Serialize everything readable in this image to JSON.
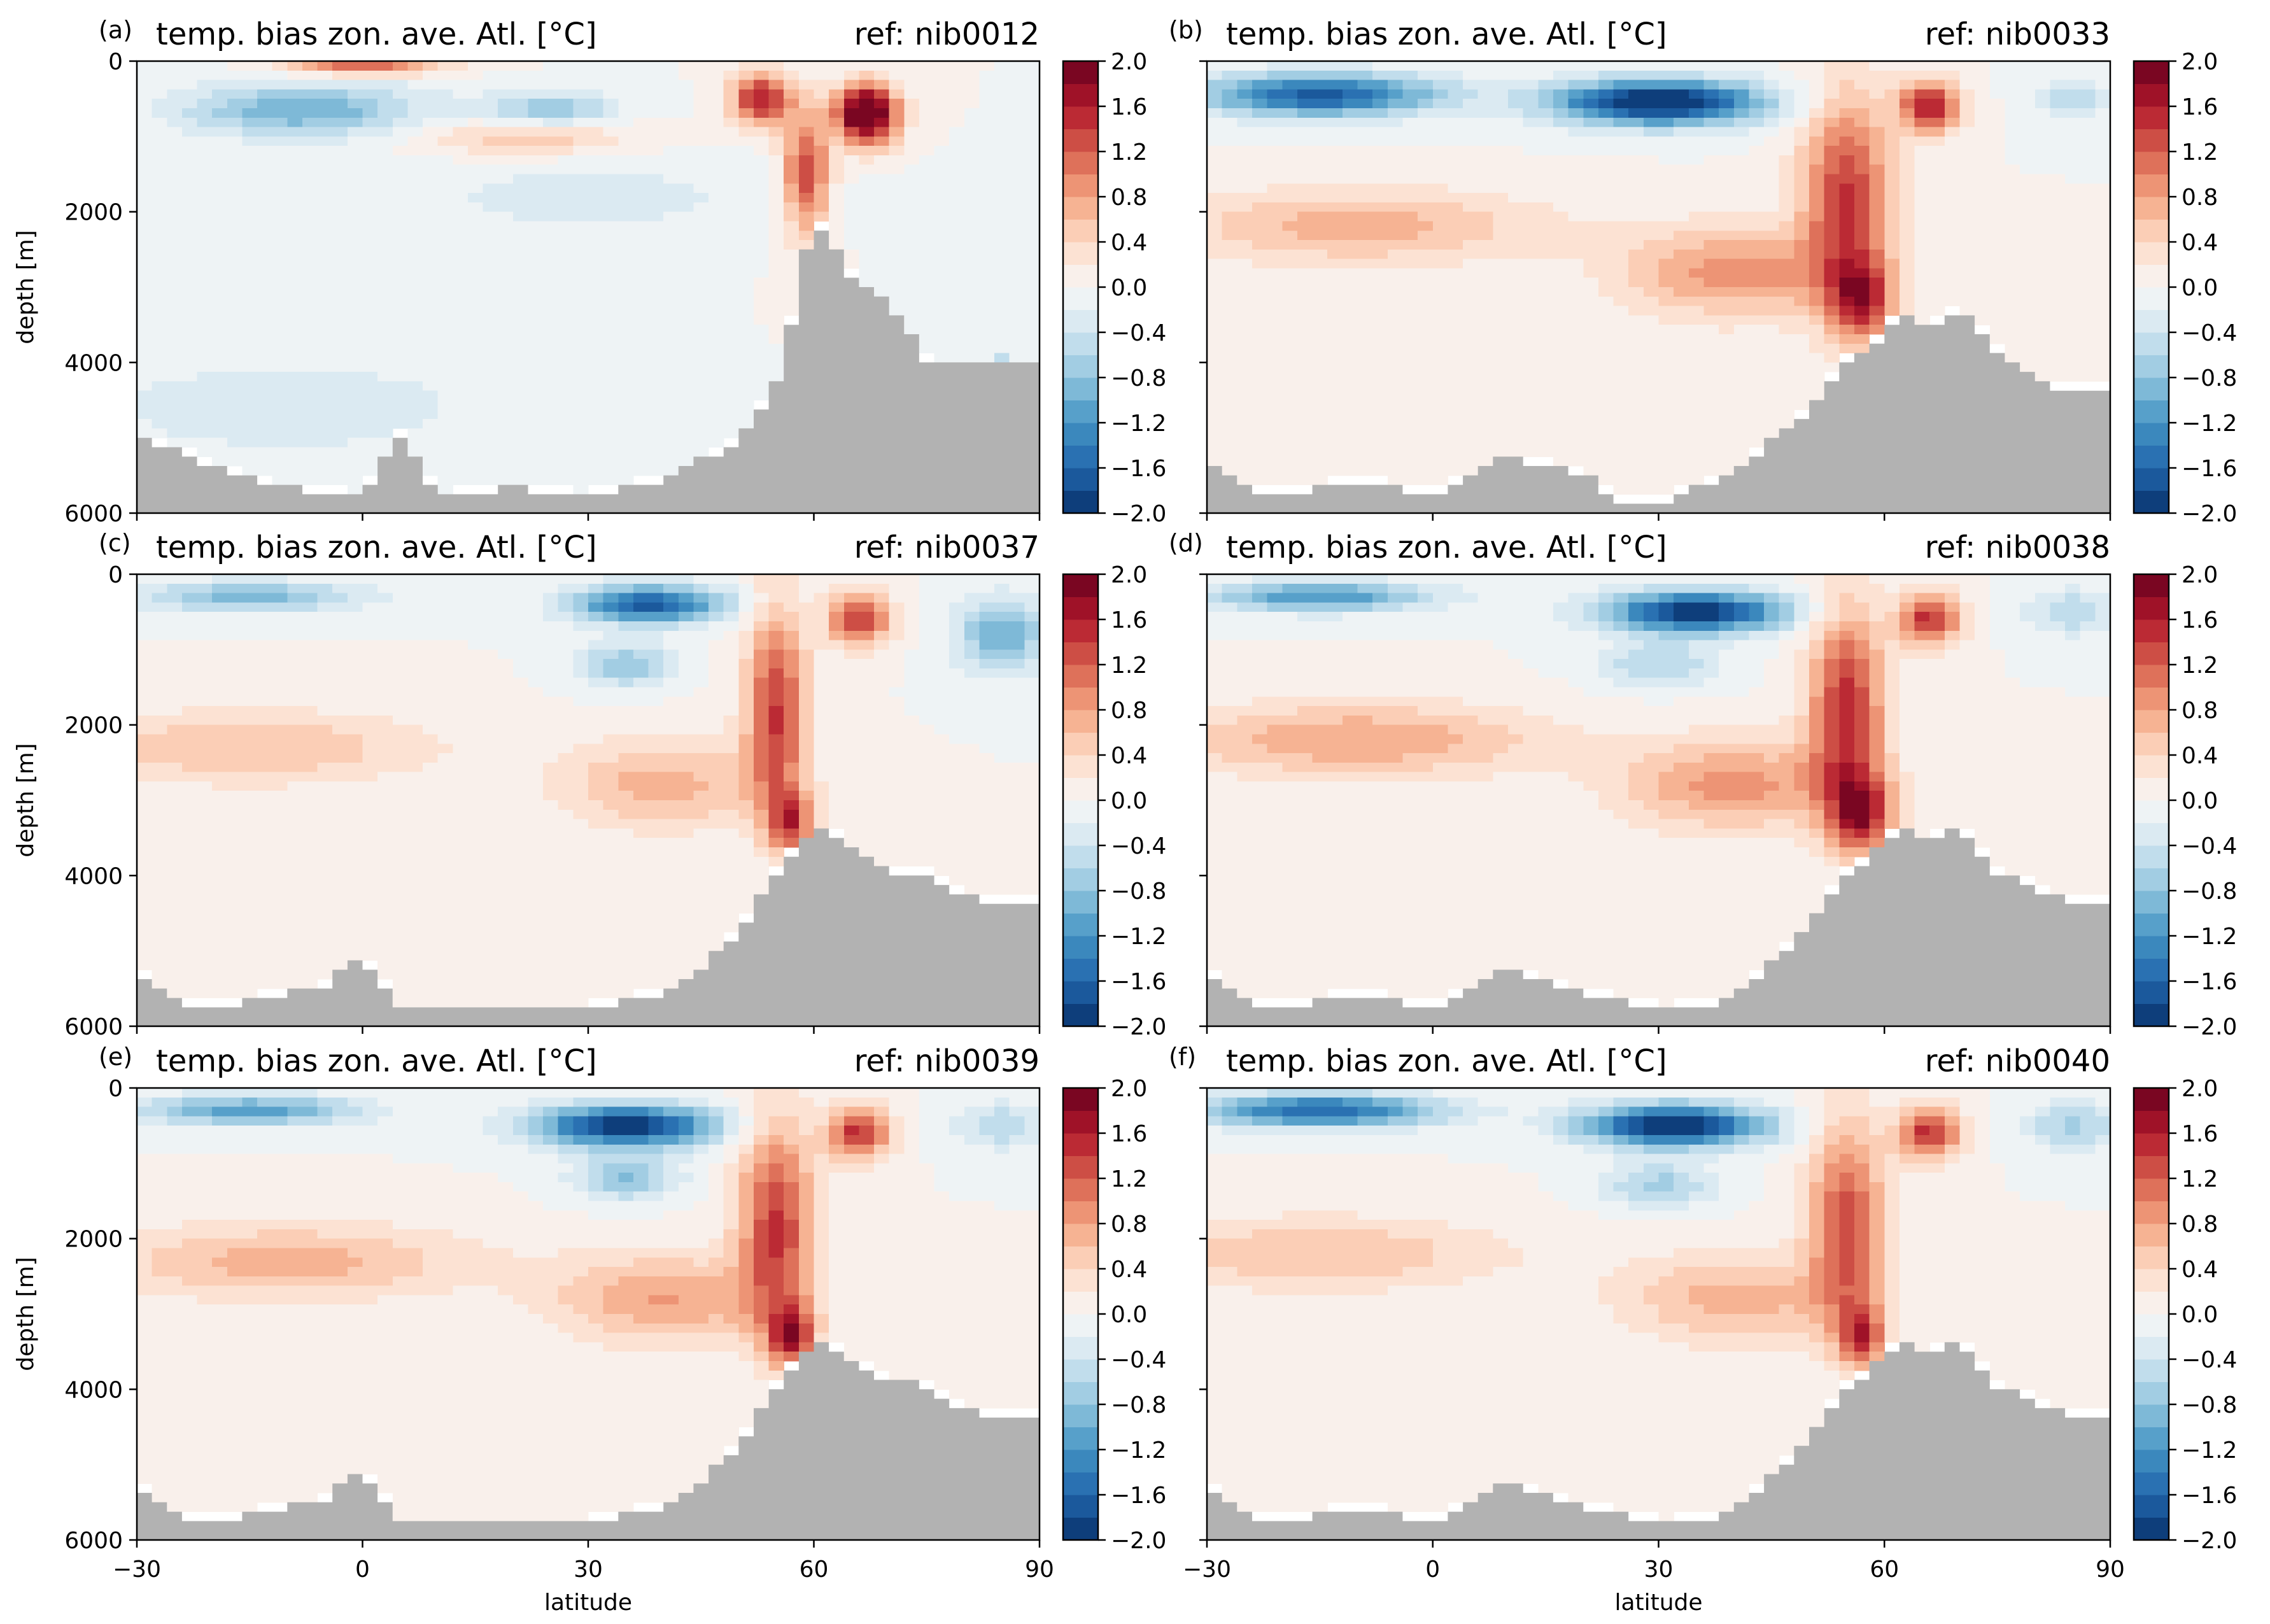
{
  "figure": {
    "xlabel": "latitude",
    "ylabel": "depth [m]",
    "x_ticks": [
      -30,
      0,
      30,
      60,
      90
    ],
    "y_ticks": [
      0,
      2000,
      4000,
      6000
    ],
    "colorbar_ticks": [
      -2.0,
      -1.6,
      -1.2,
      -0.8,
      -0.4,
      0.0,
      0.4,
      0.8,
      1.2,
      1.6,
      2.0
    ],
    "colormap": "RdBu_r",
    "colormap_colors": [
      "#08306b",
      "#2166ac",
      "#4393c3",
      "#92c5de",
      "#d1e5f0",
      "#f7f7f7",
      "#fddbc7",
      "#f4a582",
      "#d6604d",
      "#b2182b",
      "#67001f"
    ],
    "land_color": "#b2b2b2"
  },
  "chart_data": [
    {
      "type": "heatmap",
      "panel_label": "(a)",
      "title": "temp. bias zon. ave. Atl. [°C]",
      "ref": "ref: nib0012",
      "xlim": [
        -30,
        90
      ],
      "ylim": [
        6000,
        0
      ],
      "clim": [
        -2.0,
        2.0
      ],
      "features": [
        {
          "lat": -8,
          "depth": 650,
          "dlat": 16,
          "ddepth": 350,
          "amp": -1.0
        },
        {
          "lat": 25,
          "depth": 650,
          "dlat": 9,
          "ddepth": 250,
          "amp": -0.8
        },
        {
          "lat": 0,
          "depth": 100,
          "dlat": 10,
          "ddepth": 80,
          "amp": 1.5
        },
        {
          "lat": 22,
          "depth": 1000,
          "dlat": 14,
          "ddepth": 250,
          "amp": 0.6
        },
        {
          "lat": 53,
          "depth": 500,
          "dlat": 4,
          "ddepth": 350,
          "amp": 1.6
        },
        {
          "lat": 67,
          "depth": 700,
          "dlat": 4,
          "ddepth": 400,
          "amp": 2.5
        },
        {
          "lat": 59,
          "depth": 1500,
          "dlat": 3,
          "ddepth": 800,
          "amp": 1.4
        },
        {
          "lat": 30,
          "depth": 1800,
          "dlat": 25,
          "ddepth": 500,
          "amp": -0.3
        },
        {
          "lat": -10,
          "depth": 4600,
          "dlat": 25,
          "ddepth": 600,
          "amp": -0.4
        },
        {
          "lat": 85,
          "depth": 4200,
          "dlat": 2,
          "ddepth": 300,
          "amp": -1.0
        }
      ],
      "bathymetry": {
        "lat": [
          -30,
          -20,
          -10,
          0,
          5,
          10,
          20,
          30,
          40,
          50,
          55,
          58,
          60,
          65,
          70,
          75,
          80,
          85,
          90
        ],
        "depth": [
          4900,
          5300,
          5600,
          5700,
          4900,
          5700,
          5600,
          5700,
          5500,
          5000,
          4200,
          3000,
          2000,
          2800,
          3200,
          3900,
          4000,
          4000,
          4000
        ]
      }
    },
    {
      "type": "heatmap",
      "panel_label": "(b)",
      "title": "temp. bias zon. ave. Atl. [°C]",
      "ref": "ref: nib0033",
      "xlim": [
        -30,
        90
      ],
      "ylim": [
        6000,
        0
      ],
      "clim": [
        -2.0,
        2.0
      ],
      "features": [
        {
          "lat": -15,
          "depth": 450,
          "dlat": 16,
          "ddepth": 280,
          "amp": -1.7
        },
        {
          "lat": 30,
          "depth": 550,
          "dlat": 14,
          "ddepth": 300,
          "amp": -2.2
        },
        {
          "lat": 55,
          "depth": 1800,
          "dlat": 6,
          "ddepth": 1400,
          "amp": 1.4
        },
        {
          "lat": 57,
          "depth": 3200,
          "dlat": 4,
          "ddepth": 500,
          "amp": 1.3
        },
        {
          "lat": 66,
          "depth": 600,
          "dlat": 4,
          "ddepth": 350,
          "amp": 1.6
        },
        {
          "lat": -10,
          "depth": 2200,
          "dlat": 25,
          "ddepth": 500,
          "amp": 0.7
        },
        {
          "lat": 40,
          "depth": 2800,
          "dlat": 15,
          "ddepth": 600,
          "amp": 0.9
        },
        {
          "lat": 85,
          "depth": 500,
          "dlat": 5,
          "ddepth": 300,
          "amp": -0.5
        },
        {
          "lat": 20,
          "depth": 4500,
          "dlat": 30,
          "ddepth": 700,
          "amp": 0.2
        }
      ],
      "bathymetry": {
        "lat": [
          -30,
          -25,
          -20,
          -10,
          0,
          10,
          20,
          25,
          30,
          40,
          45,
          50,
          55,
          58,
          62,
          65,
          70,
          75,
          80,
          85,
          90
        ],
        "depth": [
          5300,
          5600,
          5700,
          5500,
          5700,
          5200,
          5400,
          5800,
          5800,
          5400,
          5000,
          4600,
          3900,
          3800,
          3300,
          3500,
          3200,
          3800,
          4200,
          4300,
          4300
        ]
      }
    },
    {
      "type": "heatmap",
      "panel_label": "(c)",
      "title": "temp. bias zon. ave. Atl. [°C]",
      "ref": "ref: nib0037",
      "xlim": [
        -30,
        90
      ],
      "ylim": [
        6000,
        0
      ],
      "clim": [
        -2.0,
        2.0
      ],
      "features": [
        {
          "lat": -15,
          "depth": 300,
          "dlat": 15,
          "ddepth": 200,
          "amp": -0.9
        },
        {
          "lat": 38,
          "depth": 400,
          "dlat": 10,
          "ddepth": 250,
          "amp": -1.7
        },
        {
          "lat": 35,
          "depth": 1200,
          "dlat": 6,
          "ddepth": 300,
          "amp": -0.8
        },
        {
          "lat": 55,
          "depth": 1800,
          "dlat": 4,
          "ddepth": 1400,
          "amp": 1.4
        },
        {
          "lat": 57,
          "depth": 3300,
          "dlat": 3,
          "ddepth": 400,
          "amp": 1.2
        },
        {
          "lat": 66,
          "depth": 600,
          "dlat": 4,
          "ddepth": 350,
          "amp": 1.5
        },
        {
          "lat": -15,
          "depth": 2300,
          "dlat": 25,
          "ddepth": 500,
          "amp": 0.6
        },
        {
          "lat": 40,
          "depth": 2800,
          "dlat": 14,
          "ddepth": 600,
          "amp": 0.7
        },
        {
          "lat": 85,
          "depth": 800,
          "dlat": 6,
          "ddepth": 500,
          "amp": -1.0
        }
      ],
      "bathymetry": {
        "lat": [
          -30,
          -25,
          -20,
          -10,
          -5,
          0,
          5,
          10,
          20,
          30,
          40,
          45,
          50,
          55,
          58,
          62,
          65,
          70,
          75,
          80,
          85,
          90
        ],
        "depth": [
          5200,
          5600,
          5700,
          5500,
          5400,
          5000,
          5700,
          5700,
          5700,
          5700,
          5500,
          5200,
          4700,
          3900,
          3500,
          3300,
          3600,
          3900,
          3900,
          4200,
          4300,
          4300
        ]
      }
    },
    {
      "type": "heatmap",
      "panel_label": "(d)",
      "title": "temp. bias zon. ave. Atl. [°C]",
      "ref": "ref: nib0038",
      "xlim": [
        -30,
        90
      ],
      "ylim": [
        6000,
        0
      ],
      "clim": [
        -2.0,
        2.0
      ],
      "features": [
        {
          "lat": -15,
          "depth": 300,
          "dlat": 15,
          "ddepth": 200,
          "amp": -1.2
        },
        {
          "lat": 35,
          "depth": 500,
          "dlat": 12,
          "ddepth": 280,
          "amp": -2.0
        },
        {
          "lat": 30,
          "depth": 1200,
          "dlat": 8,
          "ddepth": 300,
          "amp": -0.6
        },
        {
          "lat": 55,
          "depth": 1800,
          "dlat": 5,
          "ddepth": 1400,
          "amp": 1.5
        },
        {
          "lat": 57,
          "depth": 3200,
          "dlat": 4,
          "ddepth": 500,
          "amp": 1.4
        },
        {
          "lat": 66,
          "depth": 600,
          "dlat": 4,
          "ddepth": 350,
          "amp": 1.5
        },
        {
          "lat": -10,
          "depth": 2200,
          "dlat": 25,
          "ddepth": 500,
          "amp": 0.8
        },
        {
          "lat": 40,
          "depth": 2800,
          "dlat": 15,
          "ddepth": 600,
          "amp": 0.9
        },
        {
          "lat": 85,
          "depth": 500,
          "dlat": 6,
          "ddepth": 300,
          "amp": -0.6
        }
      ],
      "bathymetry": {
        "lat": [
          -30,
          -25,
          -20,
          -10,
          0,
          10,
          20,
          30,
          40,
          45,
          50,
          55,
          58,
          62,
          65,
          70,
          75,
          80,
          85,
          90
        ],
        "depth": [
          5200,
          5600,
          5700,
          5500,
          5700,
          5200,
          5500,
          5700,
          5600,
          5100,
          4600,
          3900,
          3700,
          3300,
          3500,
          3300,
          3900,
          4100,
          4300,
          4300
        ]
      }
    },
    {
      "type": "heatmap",
      "panel_label": "(e)",
      "title": "temp. bias zon. ave. Atl. [°C]",
      "ref": "ref: nib0039",
      "xlim": [
        -30,
        90
      ],
      "ylim": [
        6000,
        0
      ],
      "clim": [
        -2.0,
        2.0
      ],
      "features": [
        {
          "lat": -15,
          "depth": 300,
          "dlat": 15,
          "ddepth": 200,
          "amp": -1.1
        },
        {
          "lat": 35,
          "depth": 500,
          "dlat": 12,
          "ddepth": 280,
          "amp": -2.0
        },
        {
          "lat": 35,
          "depth": 1200,
          "dlat": 7,
          "ddepth": 300,
          "amp": -0.8
        },
        {
          "lat": 55,
          "depth": 1800,
          "dlat": 5,
          "ddepth": 1400,
          "amp": 1.4
        },
        {
          "lat": 57,
          "depth": 3300,
          "dlat": 3,
          "ddepth": 400,
          "amp": 1.4
        },
        {
          "lat": 66,
          "depth": 600,
          "dlat": 4,
          "ddepth": 350,
          "amp": 1.5
        },
        {
          "lat": -10,
          "depth": 2300,
          "dlat": 25,
          "ddepth": 500,
          "amp": 0.7
        },
        {
          "lat": 40,
          "depth": 2800,
          "dlat": 15,
          "ddepth": 600,
          "amp": 0.8
        },
        {
          "lat": 85,
          "depth": 500,
          "dlat": 6,
          "ddepth": 300,
          "amp": -0.6
        }
      ],
      "bathymetry": {
        "lat": [
          -30,
          -25,
          -20,
          -10,
          -5,
          0,
          5,
          10,
          20,
          30,
          40,
          45,
          50,
          55,
          58,
          62,
          65,
          70,
          75,
          80,
          85,
          90
        ],
        "depth": [
          5200,
          5600,
          5700,
          5500,
          5400,
          5000,
          5700,
          5700,
          5700,
          5700,
          5500,
          5200,
          4700,
          3900,
          3500,
          3300,
          3600,
          3800,
          3900,
          4200,
          4300,
          4300
        ]
      }
    },
    {
      "type": "heatmap",
      "panel_label": "(f)",
      "title": "temp. bias zon. ave. Atl. [°C]",
      "ref": "ref: nib0040",
      "xlim": [
        -30,
        90
      ],
      "ylim": [
        6000,
        0
      ],
      "clim": [
        -2.0,
        2.0
      ],
      "features": [
        {
          "lat": -15,
          "depth": 300,
          "dlat": 16,
          "ddepth": 220,
          "amp": -1.6
        },
        {
          "lat": 32,
          "depth": 500,
          "dlat": 12,
          "ddepth": 280,
          "amp": -2.1
        },
        {
          "lat": 30,
          "depth": 1300,
          "dlat": 7,
          "ddepth": 300,
          "amp": -0.7
        },
        {
          "lat": 55,
          "depth": 1800,
          "dlat": 5,
          "ddepth": 1400,
          "amp": 1.3
        },
        {
          "lat": 57,
          "depth": 3300,
          "dlat": 3,
          "ddepth": 400,
          "amp": 1.2
        },
        {
          "lat": 66,
          "depth": 600,
          "dlat": 4,
          "ddepth": 350,
          "amp": 1.5
        },
        {
          "lat": -15,
          "depth": 2200,
          "dlat": 25,
          "ddepth": 500,
          "amp": 0.6
        },
        {
          "lat": 40,
          "depth": 2800,
          "dlat": 15,
          "ddepth": 600,
          "amp": 0.7
        },
        {
          "lat": 85,
          "depth": 500,
          "dlat": 6,
          "ddepth": 300,
          "amp": -0.7
        }
      ],
      "bathymetry": {
        "lat": [
          -30,
          -25,
          -20,
          -10,
          0,
          10,
          20,
          30,
          40,
          45,
          50,
          55,
          58,
          62,
          65,
          70,
          75,
          80,
          85,
          90
        ],
        "depth": [
          5200,
          5600,
          5700,
          5500,
          5700,
          5200,
          5500,
          5700,
          5600,
          5100,
          4600,
          3900,
          3700,
          3300,
          3500,
          3300,
          3900,
          4100,
          4300,
          4300
        ]
      }
    }
  ]
}
